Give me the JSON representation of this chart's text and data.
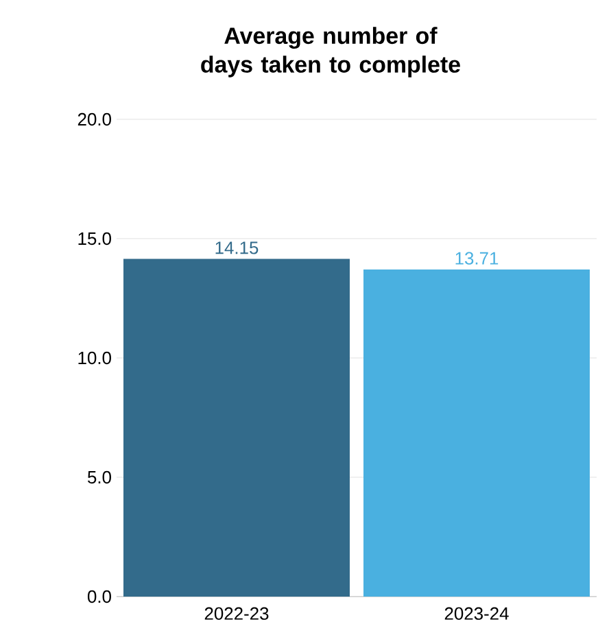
{
  "chart_data": {
    "type": "bar",
    "title": "Average number of days taken to complete",
    "categories": [
      "2022-23",
      "2023-24"
    ],
    "values": [
      14.15,
      13.71
    ],
    "colors": [
      "#336b8b",
      "#4ab0e0"
    ],
    "ylim": [
      0,
      20
    ],
    "yticks": [
      {
        "value": 0,
        "label": "0.0"
      },
      {
        "value": 5,
        "label": "5.0"
      },
      {
        "value": 10,
        "label": "10.0"
      },
      {
        "value": 15,
        "label": "15.0"
      },
      {
        "value": 20,
        "label": "20.0"
      }
    ],
    "grid": "y",
    "data_labels": true
  }
}
